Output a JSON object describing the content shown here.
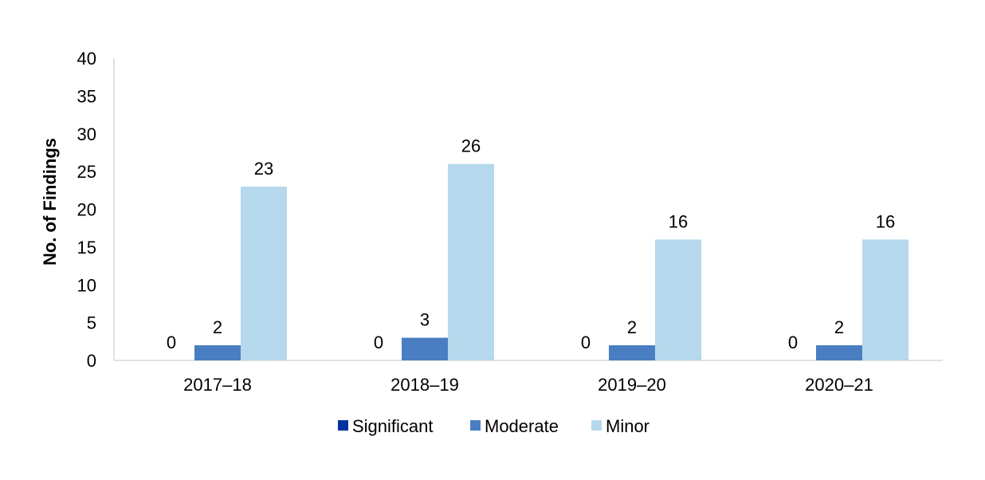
{
  "chart_data": {
    "type": "bar",
    "categories": [
      "2017–18",
      "2018–19",
      "2019–20",
      "2020–21"
    ],
    "series": [
      {
        "name": "Significant",
        "values": [
          0,
          0,
          0,
          0
        ],
        "color": "#0033a0"
      },
      {
        "name": "Moderate",
        "values": [
          2,
          3,
          2,
          2
        ],
        "color": "#4a7ec2"
      },
      {
        "name": "Minor",
        "values": [
          23,
          26,
          16,
          16
        ],
        "color": "#b5d8ec"
      }
    ],
    "ylabel": "No. of Findings",
    "xlabel": "",
    "ylim": [
      0,
      40
    ],
    "yticks": [
      0,
      5,
      10,
      15,
      20,
      25,
      30,
      35,
      40
    ],
    "grid": false,
    "legend_position": "bottom",
    "data_labels": true
  }
}
